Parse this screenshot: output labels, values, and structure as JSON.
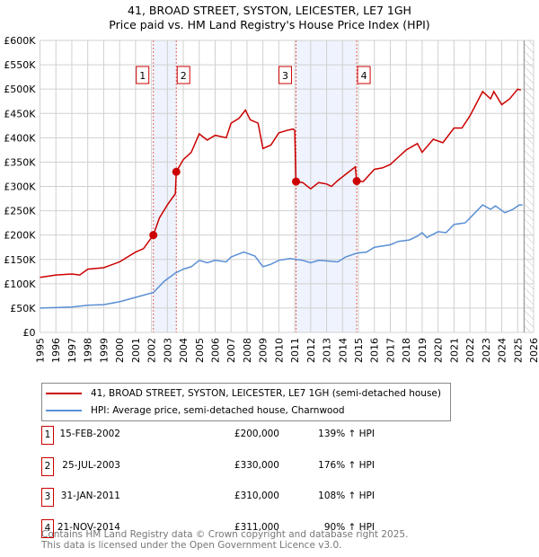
{
  "title": "41, BROAD STREET, SYSTON, LEICESTER, LE7 1GH",
  "subtitle": "Price paid vs. HM Land Registry's House Price Index (HPI)",
  "legend": {
    "red": "41, BROAD STREET, SYSTON, LEICESTER, LE7 1GH (semi-detached house)",
    "blue": "HPI: Average price, semi-detached house, Charnwood"
  },
  "sales": [
    {
      "n": "1",
      "date": "15-FEB-2002",
      "price": "£200,000",
      "hpi": "139% ↑ HPI"
    },
    {
      "n": "2",
      "date": "25-JUL-2003",
      "price": "£330,000",
      "hpi": "176% ↑ HPI"
    },
    {
      "n": "3",
      "date": "31-JAN-2011",
      "price": "£310,000",
      "hpi": "108% ↑ HPI"
    },
    {
      "n": "4",
      "date": "21-NOV-2014",
      "price": "£311,000",
      "hpi": "90% ↑ HPI"
    }
  ],
  "footer": {
    "line1": "Contains HM Land Registry data © Crown copyright and database right 2025.",
    "line2": "This data is licensed under the Open Government Licence v3.0."
  },
  "chart_data": {
    "type": "line",
    "xlim": [
      1995,
      2026
    ],
    "ylim": [
      0,
      600000
    ],
    "xticks": [
      "1995",
      "1996",
      "1997",
      "1998",
      "1999",
      "2000",
      "2001",
      "2002",
      "2003",
      "2004",
      "2005",
      "2006",
      "2007",
      "2008",
      "2009",
      "2010",
      "2011",
      "2012",
      "2013",
      "2014",
      "2015",
      "2016",
      "2017",
      "2018",
      "2019",
      "2020",
      "2021",
      "2022",
      "2023",
      "2024",
      "2025",
      "2026"
    ],
    "yticks": [
      {
        "v": 0,
        "label": "£0"
      },
      {
        "v": 50000,
        "label": "£50K"
      },
      {
        "v": 100000,
        "label": "£100K"
      },
      {
        "v": 150000,
        "label": "£150K"
      },
      {
        "v": 200000,
        "label": "£200K"
      },
      {
        "v": 250000,
        "label": "£250K"
      },
      {
        "v": 300000,
        "label": "£300K"
      },
      {
        "v": 350000,
        "label": "£350K"
      },
      {
        "v": 400000,
        "label": "£400K"
      },
      {
        "v": 450000,
        "label": "£450K"
      },
      {
        "v": 500000,
        "label": "£500K"
      },
      {
        "v": 550000,
        "label": "£550K"
      },
      {
        "v": 600000,
        "label": "£600K"
      }
    ],
    "grid": true,
    "forecast_from": 2025.4,
    "colors": {
      "red": "#cc0000",
      "blue": "#5b8fd4",
      "band": "#eef3fd"
    },
    "sale_points": [
      {
        "label": "1",
        "x": 2002.12,
        "y": 200000
      },
      {
        "label": "2",
        "x": 2003.56,
        "y": 330000
      },
      {
        "label": "3",
        "x": 2011.08,
        "y": 310000
      },
      {
        "label": "4",
        "x": 2014.89,
        "y": 311000
      }
    ],
    "series": [
      {
        "name": "41, BROAD STREET, SYSTON, LEICESTER, LE7 1GH (semi-detached house)",
        "color": "#cc0000",
        "points": [
          [
            1995,
            113
          ],
          [
            1996,
            118
          ],
          [
            1997,
            120
          ],
          [
            1997.5,
            118
          ],
          [
            1998,
            130
          ],
          [
            1999,
            133
          ],
          [
            2000,
            145
          ],
          [
            2001,
            165
          ],
          [
            2001.5,
            172
          ],
          [
            2002.12,
            200
          ],
          [
            2002.5,
            235
          ],
          [
            2003,
            262
          ],
          [
            2003.5,
            285
          ],
          [
            2003.56,
            330
          ],
          [
            2004,
            355
          ],
          [
            2004.5,
            370
          ],
          [
            2005,
            408
          ],
          [
            2005.5,
            395
          ],
          [
            2006,
            405
          ],
          [
            2006.7,
            400
          ],
          [
            2007,
            430
          ],
          [
            2007.5,
            440
          ],
          [
            2007.9,
            457
          ],
          [
            2008.2,
            437
          ],
          [
            2008.7,
            430
          ],
          [
            2009,
            378
          ],
          [
            2009.5,
            385
          ],
          [
            2010,
            410
          ],
          [
            2010.5,
            415
          ],
          [
            2010.9,
            418
          ],
          [
            2011.0,
            415
          ],
          [
            2011.08,
            310
          ],
          [
            2011.5,
            308
          ],
          [
            2012,
            295
          ],
          [
            2012.5,
            308
          ],
          [
            2013,
            305
          ],
          [
            2013.3,
            300
          ],
          [
            2013.7,
            312
          ],
          [
            2014.2,
            325
          ],
          [
            2014.8,
            340
          ],
          [
            2014.89,
            311
          ],
          [
            2015.3,
            310
          ],
          [
            2016,
            335
          ],
          [
            2016.5,
            338
          ],
          [
            2017,
            345
          ],
          [
            2017.5,
            360
          ],
          [
            2018,
            375
          ],
          [
            2018.7,
            388
          ],
          [
            2019,
            370
          ],
          [
            2019.7,
            397
          ],
          [
            2020.3,
            390
          ],
          [
            2021,
            420
          ],
          [
            2021.5,
            420
          ],
          [
            2022,
            445
          ],
          [
            2022.8,
            495
          ],
          [
            2023.3,
            480
          ],
          [
            2023.5,
            495
          ],
          [
            2024,
            468
          ],
          [
            2024.5,
            480
          ],
          [
            2025,
            500
          ],
          [
            2025.2,
            498
          ]
        ]
      },
      {
        "name": "HPI: Average price, semi-detached house, Charnwood",
        "color": "#5b8fd4",
        "points": [
          [
            1995,
            50
          ],
          [
            1996,
            51
          ],
          [
            1997,
            52
          ],
          [
            1998,
            56
          ],
          [
            1999,
            57
          ],
          [
            2000,
            63
          ],
          [
            2001,
            72
          ],
          [
            2002.12,
            82
          ],
          [
            2002.8,
            105
          ],
          [
            2003.5,
            122
          ],
          [
            2004,
            130
          ],
          [
            2004.5,
            135
          ],
          [
            2005,
            148
          ],
          [
            2005.5,
            143
          ],
          [
            2006,
            148
          ],
          [
            2006.7,
            145
          ],
          [
            2007,
            155
          ],
          [
            2007.8,
            165
          ],
          [
            2008.5,
            157
          ],
          [
            2009,
            135
          ],
          [
            2009.5,
            140
          ],
          [
            2010,
            148
          ],
          [
            2010.7,
            152
          ],
          [
            2011.5,
            148
          ],
          [
            2012,
            143
          ],
          [
            2012.5,
            148
          ],
          [
            2013,
            147
          ],
          [
            2013.7,
            145
          ],
          [
            2014.2,
            155
          ],
          [
            2014.9,
            163
          ],
          [
            2015.5,
            165
          ],
          [
            2016,
            175
          ],
          [
            2017,
            180
          ],
          [
            2017.5,
            187
          ],
          [
            2018.2,
            190
          ],
          [
            2018.7,
            198
          ],
          [
            2019,
            205
          ],
          [
            2019.3,
            195
          ],
          [
            2020,
            207
          ],
          [
            2020.5,
            205
          ],
          [
            2021,
            222
          ],
          [
            2021.7,
            225
          ],
          [
            2022,
            235
          ],
          [
            2022.8,
            262
          ],
          [
            2023.3,
            253
          ],
          [
            2023.6,
            260
          ],
          [
            2024.2,
            246
          ],
          [
            2024.7,
            253
          ],
          [
            2025.1,
            262
          ],
          [
            2025.3,
            262
          ]
        ]
      }
    ]
  }
}
